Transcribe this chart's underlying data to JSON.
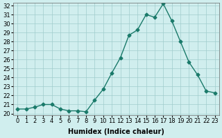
{
  "x": [
    0,
    1,
    2,
    3,
    4,
    5,
    6,
    7,
    8,
    9,
    10,
    11,
    12,
    13,
    14,
    15,
    16,
    17,
    18,
    19,
    20,
    21,
    22,
    23
  ],
  "y": [
    20.5,
    20.5,
    20.7,
    21.0,
    21.0,
    20.5,
    20.3,
    20.3,
    20.2,
    21.5,
    22.7,
    24.5,
    26.2,
    28.7,
    29.3,
    31.0,
    30.7,
    32.2,
    30.3,
    28.0,
    25.7,
    24.3,
    22.5,
    22.3
  ],
  "xlabel": "Humidex (Indice chaleur)",
  "ylim": [
    20,
    32
  ],
  "xlim": [
    0,
    23
  ],
  "yticks": [
    20,
    21,
    22,
    23,
    24,
    25,
    26,
    27,
    28,
    29,
    30,
    31,
    32
  ],
  "xticks": [
    0,
    1,
    2,
    3,
    4,
    5,
    6,
    7,
    8,
    9,
    10,
    11,
    12,
    13,
    14,
    15,
    16,
    17,
    18,
    19,
    20,
    21,
    22,
    23
  ],
  "line_color": "#1a7a6a",
  "bg_color": "#d0eeee",
  "grid_color": "#a0cccc",
  "label_fontsize": 7,
  "tick_fontsize": 6
}
